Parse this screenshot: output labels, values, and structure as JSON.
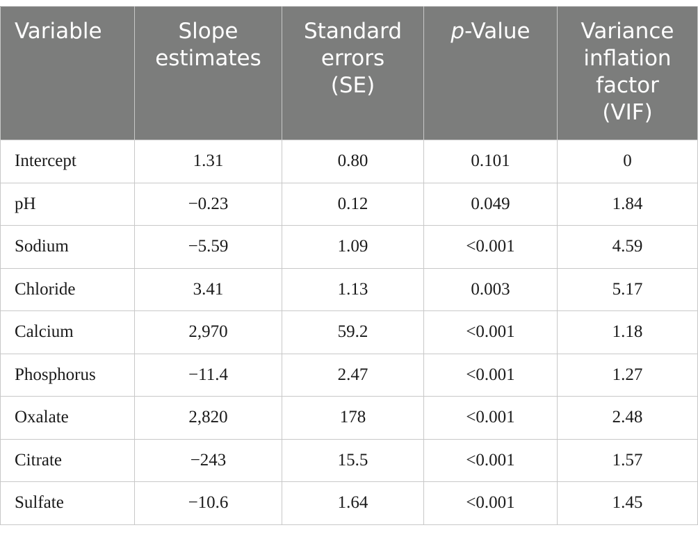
{
  "table": {
    "headers": [
      {
        "text": "Variable"
      },
      {
        "text": "Slope\nestimates"
      },
      {
        "text": "Standard\nerrors\n(SE)"
      },
      {
        "italic": "p",
        "text": "-Value"
      },
      {
        "text": "Variance\ninflation\nfactor\n(VIF)"
      }
    ],
    "rows": [
      {
        "variable": "Intercept",
        "slope": "1.31",
        "se": "0.80",
        "p": "0.101",
        "vif": "0"
      },
      {
        "variable": "pH",
        "slope": "−0.23",
        "se": "0.12",
        "p": "0.049",
        "vif": "1.84"
      },
      {
        "variable": "Sodium",
        "slope": "−5.59",
        "se": "1.09",
        "p": "<0.001",
        "vif": "4.59"
      },
      {
        "variable": "Chloride",
        "slope": "3.41",
        "se": "1.13",
        "p": "0.003",
        "vif": "5.17"
      },
      {
        "variable": "Calcium",
        "slope": "2,970",
        "se": "59.2",
        "p": "<0.001",
        "vif": "1.18"
      },
      {
        "variable": "Phosphorus",
        "slope": "−11.4",
        "se": "2.47",
        "p": "<0.001",
        "vif": "1.27"
      },
      {
        "variable": "Oxalate",
        "slope": "2,820",
        "se": "178",
        "p": "<0.001",
        "vif": "2.48"
      },
      {
        "variable": "Citrate",
        "slope": "−243",
        "se": "15.5",
        "p": "<0.001",
        "vif": "1.57"
      },
      {
        "variable": "Sulfate",
        "slope": "−10.6",
        "se": "1.64",
        "p": "<0.001",
        "vif": "1.45"
      }
    ]
  },
  "colors": {
    "header_bg": "#7c7d7c",
    "header_text": "#ffffff",
    "grid": "#c8c8c8"
  }
}
